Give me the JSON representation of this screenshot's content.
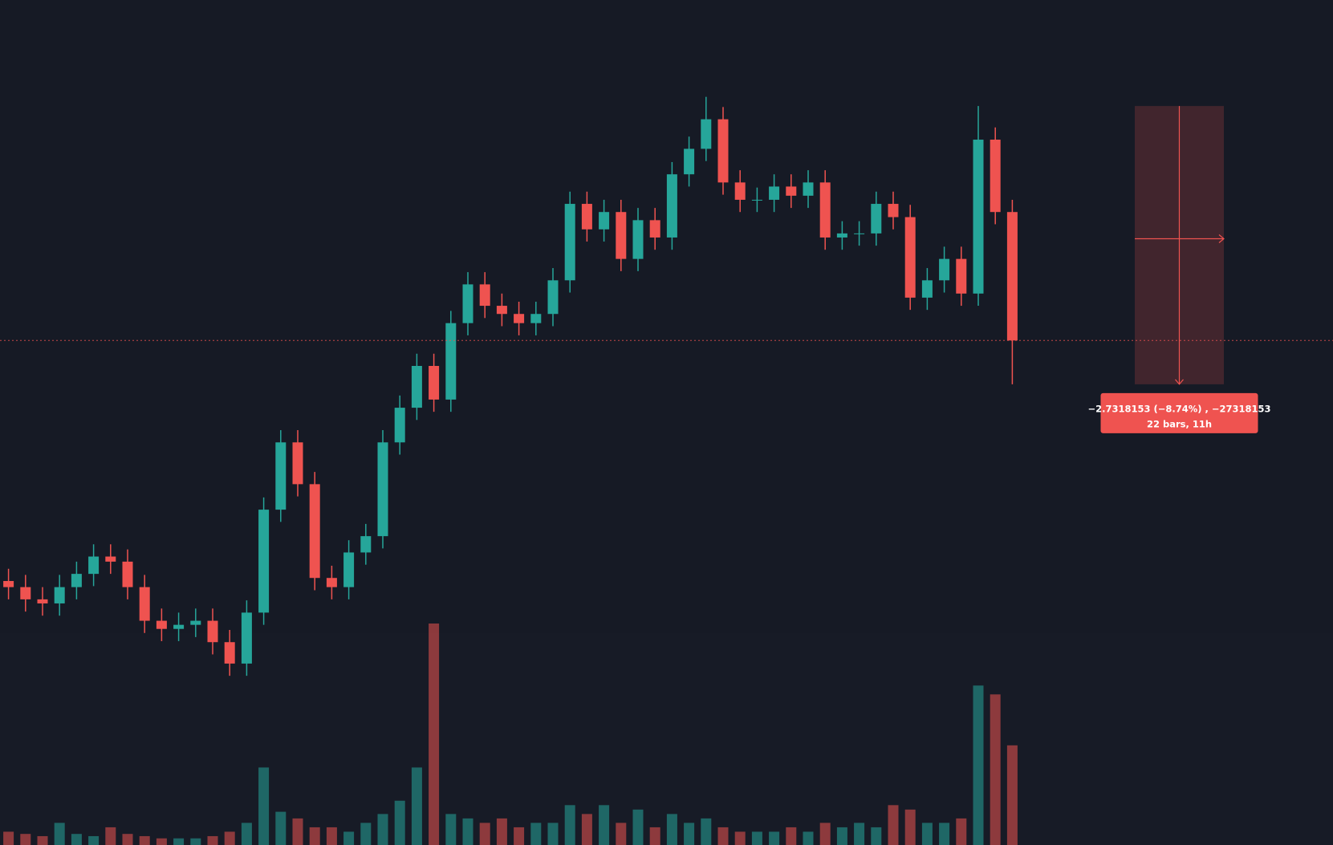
{
  "chart_data": {
    "type": "candlestick",
    "up_color": "#26a69a",
    "down_color": "#ef5350",
    "ylim": [
      24.01,
      32.3
    ],
    "volume_lim": [
      0,
      100
    ],
    "open": [
      26.6,
      26.54,
      26.42,
      26.38,
      26.54,
      26.67,
      26.84,
      26.79,
      26.54,
      26.21,
      26.13,
      26.17,
      26.21,
      26.0,
      25.79,
      26.29,
      27.3,
      27.96,
      27.55,
      26.63,
      26.54,
      26.88,
      27.04,
      27.96,
      28.3,
      28.71,
      28.38,
      29.13,
      29.51,
      29.3,
      29.22,
      29.13,
      29.22,
      29.55,
      30.3,
      30.05,
      30.22,
      29.76,
      30.14,
      29.97,
      30.59,
      30.84,
      31.13,
      30.51,
      30.34,
      30.34,
      30.47,
      30.38,
      30.51,
      29.97,
      30.01,
      30.01,
      30.3,
      30.17,
      29.38,
      29.55,
      29.76,
      29.42,
      30.93,
      30.22
    ],
    "high": [
      26.72,
      26.66,
      26.54,
      26.66,
      26.79,
      26.96,
      26.96,
      26.91,
      26.66,
      26.33,
      26.29,
      26.33,
      26.33,
      26.12,
      26.41,
      27.42,
      28.08,
      28.08,
      27.67,
      26.75,
      27.0,
      27.16,
      28.08,
      28.42,
      28.83,
      28.83,
      29.25,
      29.63,
      29.63,
      29.42,
      29.34,
      29.34,
      29.67,
      30.42,
      30.42,
      30.34,
      30.34,
      30.26,
      30.26,
      30.71,
      30.96,
      31.35,
      31.25,
      30.63,
      30.46,
      30.59,
      30.59,
      30.63,
      30.63,
      30.13,
      30.13,
      30.42,
      30.42,
      30.29,
      29.67,
      29.88,
      29.88,
      31.26,
      31.05,
      30.34
    ],
    "low": [
      26.42,
      26.3,
      26.26,
      26.26,
      26.42,
      26.55,
      26.67,
      26.42,
      26.09,
      26.01,
      26.01,
      26.05,
      25.88,
      25.67,
      25.67,
      26.17,
      27.18,
      27.43,
      26.51,
      26.42,
      26.42,
      26.76,
      26.92,
      27.84,
      28.18,
      28.26,
      28.26,
      29.01,
      29.18,
      29.1,
      29.01,
      29.01,
      29.1,
      29.43,
      29.93,
      29.93,
      29.64,
      29.64,
      29.85,
      29.85,
      30.47,
      30.72,
      30.39,
      30.22,
      30.22,
      30.22,
      30.26,
      30.26,
      29.85,
      29.85,
      29.89,
      29.89,
      30.05,
      29.26,
      29.26,
      29.43,
      29.3,
      29.3,
      30.1,
      28.53
    ],
    "close": [
      26.54,
      26.42,
      26.38,
      26.54,
      26.67,
      26.84,
      26.79,
      26.54,
      26.21,
      26.13,
      26.17,
      26.21,
      26.0,
      25.79,
      26.29,
      27.3,
      27.96,
      27.55,
      26.63,
      26.54,
      26.88,
      27.04,
      27.96,
      28.3,
      28.71,
      28.38,
      29.13,
      29.51,
      29.3,
      29.22,
      29.13,
      29.22,
      29.55,
      30.3,
      30.05,
      30.22,
      29.76,
      30.14,
      29.97,
      30.59,
      30.84,
      31.13,
      30.51,
      30.34,
      30.34,
      30.47,
      30.38,
      30.51,
      29.97,
      30.01,
      30.01,
      30.3,
      30.17,
      29.38,
      29.55,
      29.76,
      29.42,
      30.93,
      30.22,
      28.96
    ],
    "volume": [
      6,
      5,
      4,
      10,
      5,
      4,
      8,
      5,
      4,
      3,
      3,
      3,
      4,
      6,
      10,
      35,
      15,
      12,
      8,
      8,
      6,
      10,
      14,
      20,
      35,
      100,
      14,
      12,
      10,
      12,
      8,
      10,
      10,
      18,
      14,
      18,
      10,
      16,
      8,
      14,
      10,
      12,
      8,
      6,
      6,
      6,
      8,
      6,
      10,
      8,
      10,
      8,
      18,
      16,
      10,
      10,
      12,
      72,
      68,
      45
    ],
    "measure": {
      "from": 31.26,
      "to": 28.53,
      "label": "−2.7318153 (−8.74%) , −27318153",
      "sublabel": "22 bars, 11h"
    }
  }
}
